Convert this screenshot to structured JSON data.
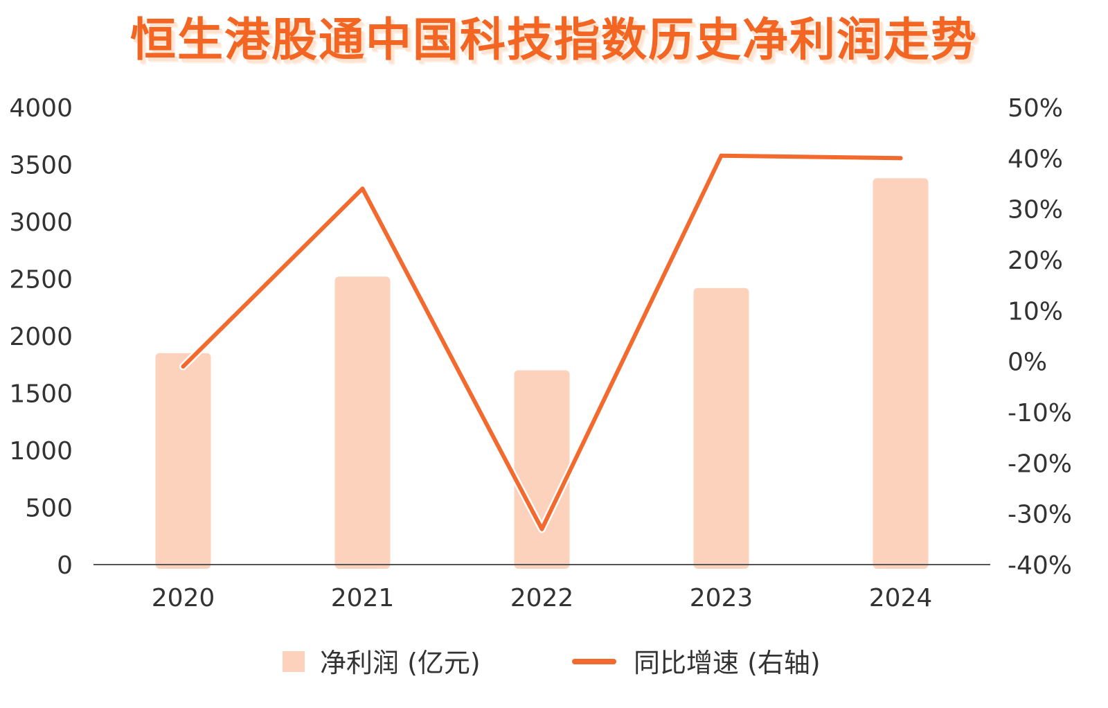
{
  "chart_data": {
    "type": "bar+line",
    "title": "恒生港股通中国科技指数历史净利润走势",
    "categories": [
      "2020",
      "2021",
      "2022",
      "2023",
      "2024"
    ],
    "series": [
      {
        "name": "净利润 (亿元)",
        "type": "bar",
        "axis": "left",
        "values": [
          1850,
          2520,
          1700,
          2420,
          3380
        ]
      },
      {
        "name": "同比增速 (右轴)",
        "type": "line",
        "axis": "right",
        "values": [
          -0.01,
          0.34,
          -0.33,
          0.405,
          0.4
        ]
      }
    ],
    "left_axis": {
      "ylim": [
        0,
        4000
      ],
      "ticks": [
        0,
        500,
        1000,
        1500,
        2000,
        2500,
        3000,
        3500,
        4000
      ],
      "tick_labels": [
        "0",
        "500",
        "1000",
        "1500",
        "2000",
        "2500",
        "3000",
        "3500",
        "4000"
      ]
    },
    "right_axis": {
      "ylim": [
        -0.4,
        0.5
      ],
      "ticks": [
        -0.4,
        -0.3,
        -0.2,
        -0.1,
        0,
        0.1,
        0.2,
        0.3,
        0.4,
        0.5
      ],
      "tick_labels": [
        "-40%",
        "-30%",
        "-20%",
        "-10%",
        "0%",
        "10%",
        "20%",
        "30%",
        "40%",
        "50%"
      ]
    },
    "grid": false,
    "legend": "bottom",
    "colors": {
      "bar": "#fdd2bd",
      "line": "#f26a2e",
      "title": "#f26522",
      "axis": "#555555",
      "text": "#333333"
    }
  }
}
